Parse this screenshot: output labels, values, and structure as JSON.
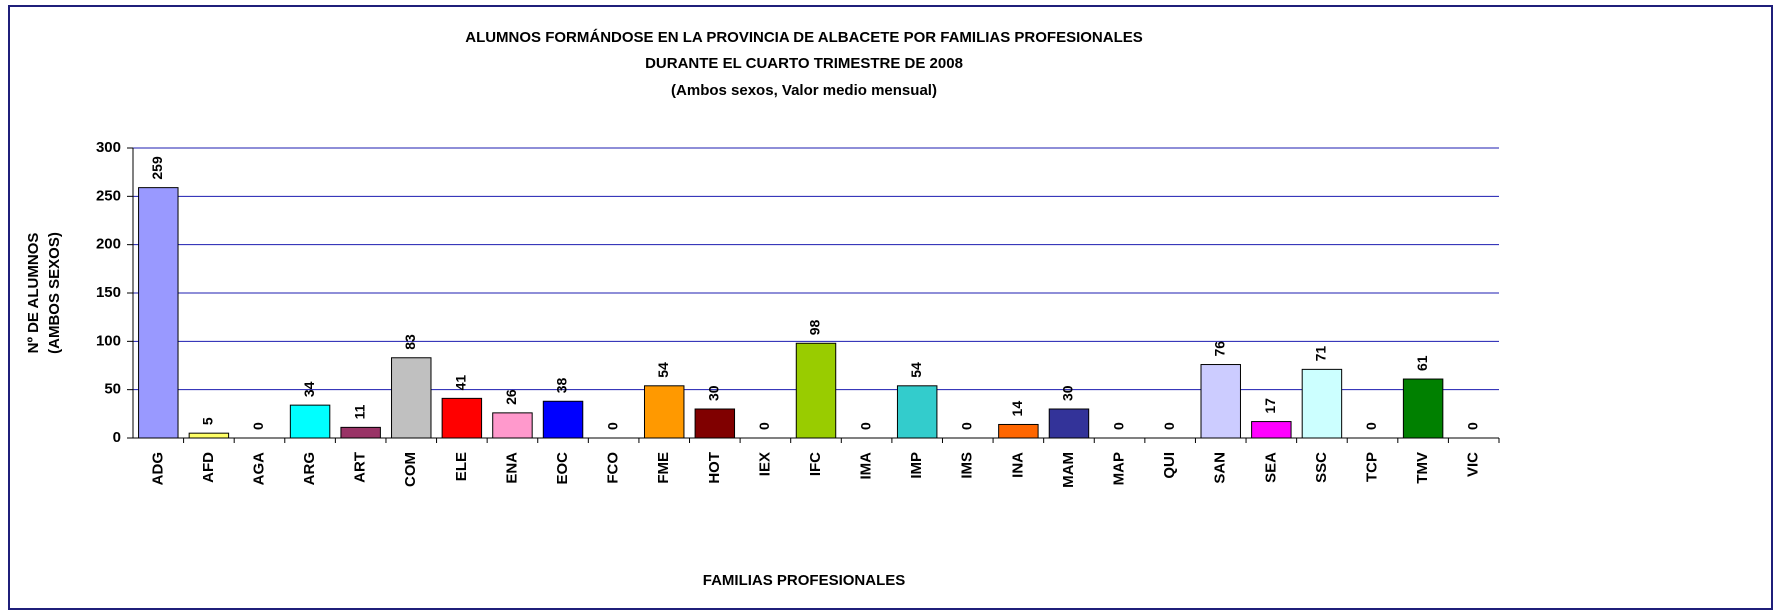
{
  "chart_data": {
    "type": "bar",
    "title": [
      "ALUMNOS FORMÁNDOSE EN LA PROVINCIA DE ALBACETE POR FAMILIAS PROFESIONALES",
      "DURANTE EL CUARTO TRIMESTRE DE 2008",
      "(Ambos sexos, Valor medio mensual)"
    ],
    "y_label": [
      "Nº DE ALUMNOS",
      "(AMBOS SEXOS)"
    ],
    "x_label": "FAMILIAS PROFESIONALES",
    "categories": [
      "ADG",
      "AFD",
      "AGA",
      "ARG",
      "ART",
      "COM",
      "ELE",
      "ENA",
      "EOC",
      "FCO",
      "FME",
      "HOT",
      "IEX",
      "IFC",
      "IMA",
      "IMP",
      "IMS",
      "INA",
      "MAM",
      "MAP",
      "QUI",
      "SAN",
      "SEA",
      "SSC",
      "TCP",
      "TMV",
      "VIC"
    ],
    "values": [
      259,
      5,
      0,
      34,
      11,
      83,
      41,
      26,
      38,
      0,
      54,
      30,
      0,
      98,
      0,
      54,
      0,
      14,
      30,
      0,
      0,
      76,
      17,
      71,
      0,
      61,
      0
    ],
    "colors": [
      "#9999ff",
      "#ffff66",
      null,
      "#00ffff",
      "#993366",
      "#c0c0c0",
      "#ff0000",
      "#ff99cc",
      "#0000ff",
      null,
      "#ff9900",
      "#800000",
      null,
      "#99cc00",
      null,
      "#33cccc",
      null,
      "#ff6600",
      "#333399",
      null,
      null,
      "#ccccff",
      "#ff00ff",
      "#ccffff",
      null,
      "#008000",
      null
    ],
    "ylim": [
      0,
      300
    ],
    "yticks": [
      0,
      50,
      100,
      150,
      200,
      250,
      300
    ],
    "grid": true
  }
}
